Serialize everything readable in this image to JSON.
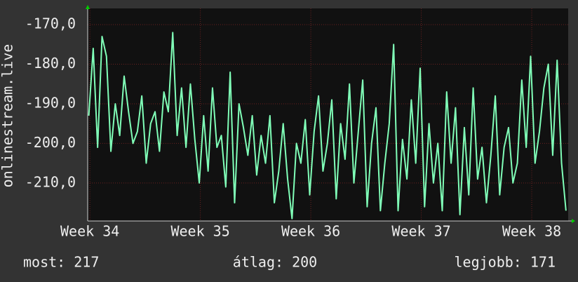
{
  "chart_data": {
    "type": "line",
    "ylabel": "onlinestream.live",
    "color": "#80ffb8",
    "grid": true,
    "xlim": [
      33.98,
      38.33
    ],
    "xticks": [
      {
        "value": 34,
        "label": "Week 34"
      },
      {
        "value": 35,
        "label": "Week 35"
      },
      {
        "value": 36,
        "label": "Week 36"
      },
      {
        "value": 37,
        "label": "Week 37"
      },
      {
        "value": 38,
        "label": "Week 38"
      }
    ],
    "ylim": [
      -219.6,
      -165.9
    ],
    "yticks": [
      {
        "value": -170,
        "label": "-170,0"
      },
      {
        "value": -180,
        "label": "-180,0"
      },
      {
        "value": -190,
        "label": "-190,0"
      },
      {
        "value": -200,
        "label": "-200,0"
      },
      {
        "value": -210,
        "label": "-210,0"
      }
    ],
    "x": [
      33.99,
      34.03,
      34.07,
      34.11,
      34.15,
      34.19,
      34.23,
      34.27,
      34.31,
      34.35,
      34.39,
      34.43,
      34.47,
      34.51,
      34.55,
      34.59,
      34.63,
      34.67,
      34.71,
      34.75,
      34.79,
      34.83,
      34.87,
      34.91,
      34.95,
      34.99,
      35.03,
      35.07,
      35.11,
      35.15,
      35.19,
      35.23,
      35.27,
      35.31,
      35.35,
      35.39,
      35.43,
      35.47,
      35.51,
      35.55,
      35.59,
      35.63,
      35.67,
      35.71,
      35.75,
      35.79,
      35.83,
      35.87,
      35.91,
      35.95,
      35.99,
      36.03,
      36.07,
      36.11,
      36.15,
      36.19,
      36.23,
      36.27,
      36.31,
      36.35,
      36.39,
      36.43,
      36.47,
      36.51,
      36.55,
      36.59,
      36.63,
      36.67,
      36.71,
      36.75,
      36.79,
      36.83,
      36.87,
      36.91,
      36.95,
      36.99,
      37.03,
      37.07,
      37.11,
      37.15,
      37.19,
      37.23,
      37.27,
      37.31,
      37.35,
      37.39,
      37.43,
      37.47,
      37.51,
      37.55,
      37.59,
      37.63,
      37.67,
      37.71,
      37.75,
      37.79,
      37.83,
      37.87,
      37.91,
      37.95,
      37.99,
      38.03,
      38.07,
      38.11,
      38.15,
      38.19,
      38.23,
      38.27,
      38.31
    ],
    "values": [
      -193,
      -176,
      -201,
      -173,
      -178,
      -202,
      -190,
      -198,
      -183,
      -192,
      -200,
      -197,
      -188,
      -205,
      -195,
      -192,
      -202,
      -187,
      -192,
      -172,
      -198,
      -186,
      -201,
      -185,
      -199,
      -210,
      -193,
      -207,
      -186,
      -201,
      -198,
      -211,
      -182,
      -215,
      -190,
      -196,
      -203,
      -193,
      -208,
      -198,
      -205,
      -193,
      -215,
      -207,
      -195,
      -209,
      -219,
      -200,
      -205,
      -194,
      -213,
      -197,
      -188,
      -207,
      -200,
      -189,
      -214,
      -195,
      -204,
      -185,
      -210,
      -197,
      -184,
      -216,
      -200,
      -191,
      -217,
      -205,
      -195,
      -175,
      -217,
      -199,
      -209,
      -189,
      -205,
      -181,
      -216,
      -195,
      -210,
      -200,
      -217,
      -187,
      -205,
      -191,
      -218,
      -196,
      -213,
      -186,
      -209,
      -201,
      -215,
      -203,
      -188,
      -213,
      -201,
      -196,
      -210,
      -205,
      -184,
      -201,
      -178,
      -205,
      -197,
      -186,
      -180,
      -203,
      -179,
      -205,
      -217
    ],
    "footer": {
      "current": "most: 217",
      "average": "átlag: 200",
      "best": "legjobb: 171"
    }
  }
}
